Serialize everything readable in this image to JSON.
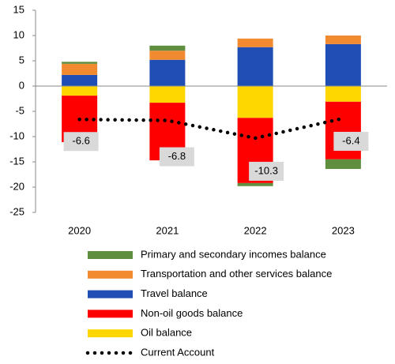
{
  "chart_data": {
    "type": "bar",
    "stacked": true,
    "categories": [
      "2020",
      "2021",
      "2022",
      "2023"
    ],
    "ylim": [
      -25,
      15
    ],
    "yticks": [
      -25,
      -20,
      -15,
      -10,
      -5,
      0,
      5,
      10,
      15
    ],
    "series": [
      {
        "name": "Oil balance",
        "color": "#ffd700",
        "values": [
          -1.9,
          -3.3,
          -6.3,
          -3.1
        ]
      },
      {
        "name": "Non-oil goods balance",
        "color": "#ff0000",
        "values": [
          -9.2,
          -11.4,
          -12.9,
          -11.4
        ]
      },
      {
        "name": "Travel balance",
        "color": "#1f4eb4",
        "values": [
          2.2,
          5.2,
          7.7,
          8.3
        ]
      },
      {
        "name": "Transportation and other services balance",
        "color": "#f28a30",
        "values": [
          2.2,
          1.8,
          1.7,
          1.7
        ]
      },
      {
        "name": "Primary and secondary incomes balance",
        "color": "#5f8f3e",
        "values": [
          0.4,
          1.0,
          -0.6,
          -1.9
        ]
      },
      {
        "name": "Current Account",
        "color": "#000000",
        "type": "line",
        "values": [
          -6.6,
          -6.8,
          -10.3,
          -6.4
        ]
      }
    ],
    "legend_order": [
      4,
      3,
      2,
      1,
      0,
      5
    ]
  }
}
